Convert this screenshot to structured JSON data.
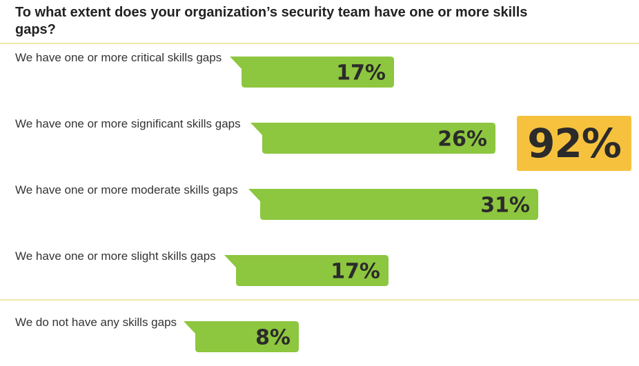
{
  "title": "To what extent does your organization’s security team have one or more skills gaps?",
  "accent_color": "#8dc63f",
  "highlight_color": "#f6c23e",
  "total": "92%",
  "chart_data": {
    "type": "bar",
    "orientation": "horizontal",
    "title": "To what extent does your organization’s security team have one or more skills gaps?",
    "categories": [
      "We have one or more critical skills gaps",
      "We have one or more significant skills gaps",
      "We have one or more moderate skills gaps",
      "We have one or more slight skills gaps",
      "We do not have any skills gaps"
    ],
    "values": [
      17,
      26,
      31,
      17,
      8
    ],
    "value_labels": [
      "17%",
      "26%",
      "31%",
      "17%",
      "8%"
    ],
    "unit": "%",
    "annotation": "92%"
  }
}
